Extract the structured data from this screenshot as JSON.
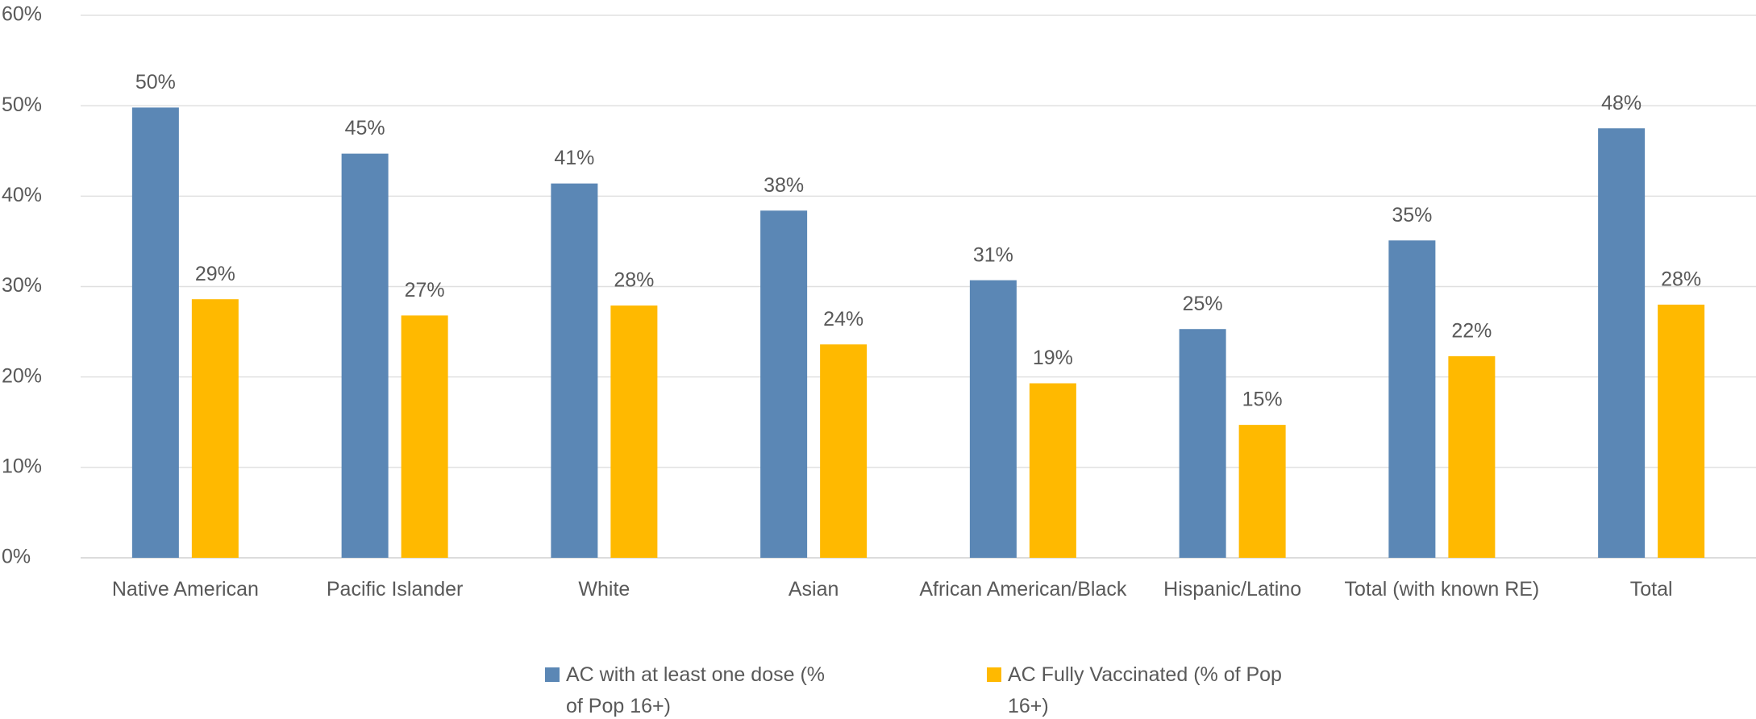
{
  "chart_data": {
    "type": "bar",
    "categories": [
      "Native American",
      "Pacific Islander",
      "White",
      "Asian",
      "African American/Black",
      "Hispanic/Latino",
      "Total (with known RE)",
      "Total"
    ],
    "series": [
      {
        "name": "AC with at least one dose (% of Pop 16+)",
        "color": "#5b87b5",
        "values": [
          49.8,
          44.7,
          41.4,
          38.4,
          30.7,
          25.3,
          35.1,
          47.5
        ],
        "value_labels": [
          "50%",
          "45%",
          "41%",
          "38%",
          "31%",
          "25%",
          "35%",
          "48%"
        ]
      },
      {
        "name": "AC Fully Vaccinated (% of Pop 16+)",
        "color": "#ffb900",
        "values": [
          28.6,
          26.8,
          27.9,
          23.6,
          19.3,
          14.7,
          22.3,
          28.0
        ],
        "value_labels": [
          "29%",
          "27%",
          "28%",
          "24%",
          "19%",
          "15%",
          "22%",
          "28%"
        ]
      }
    ],
    "ylim": [
      0,
      60
    ],
    "yticks": [
      {
        "value": 0,
        "label": "0%"
      },
      {
        "value": 10,
        "label": "10%"
      },
      {
        "value": 20,
        "label": "20%"
      },
      {
        "value": 30,
        "label": "30%"
      },
      {
        "value": 40,
        "label": "40%"
      },
      {
        "value": 50,
        "label": "50%"
      },
      {
        "value": 60,
        "label": "60%"
      }
    ],
    "grid": true
  }
}
